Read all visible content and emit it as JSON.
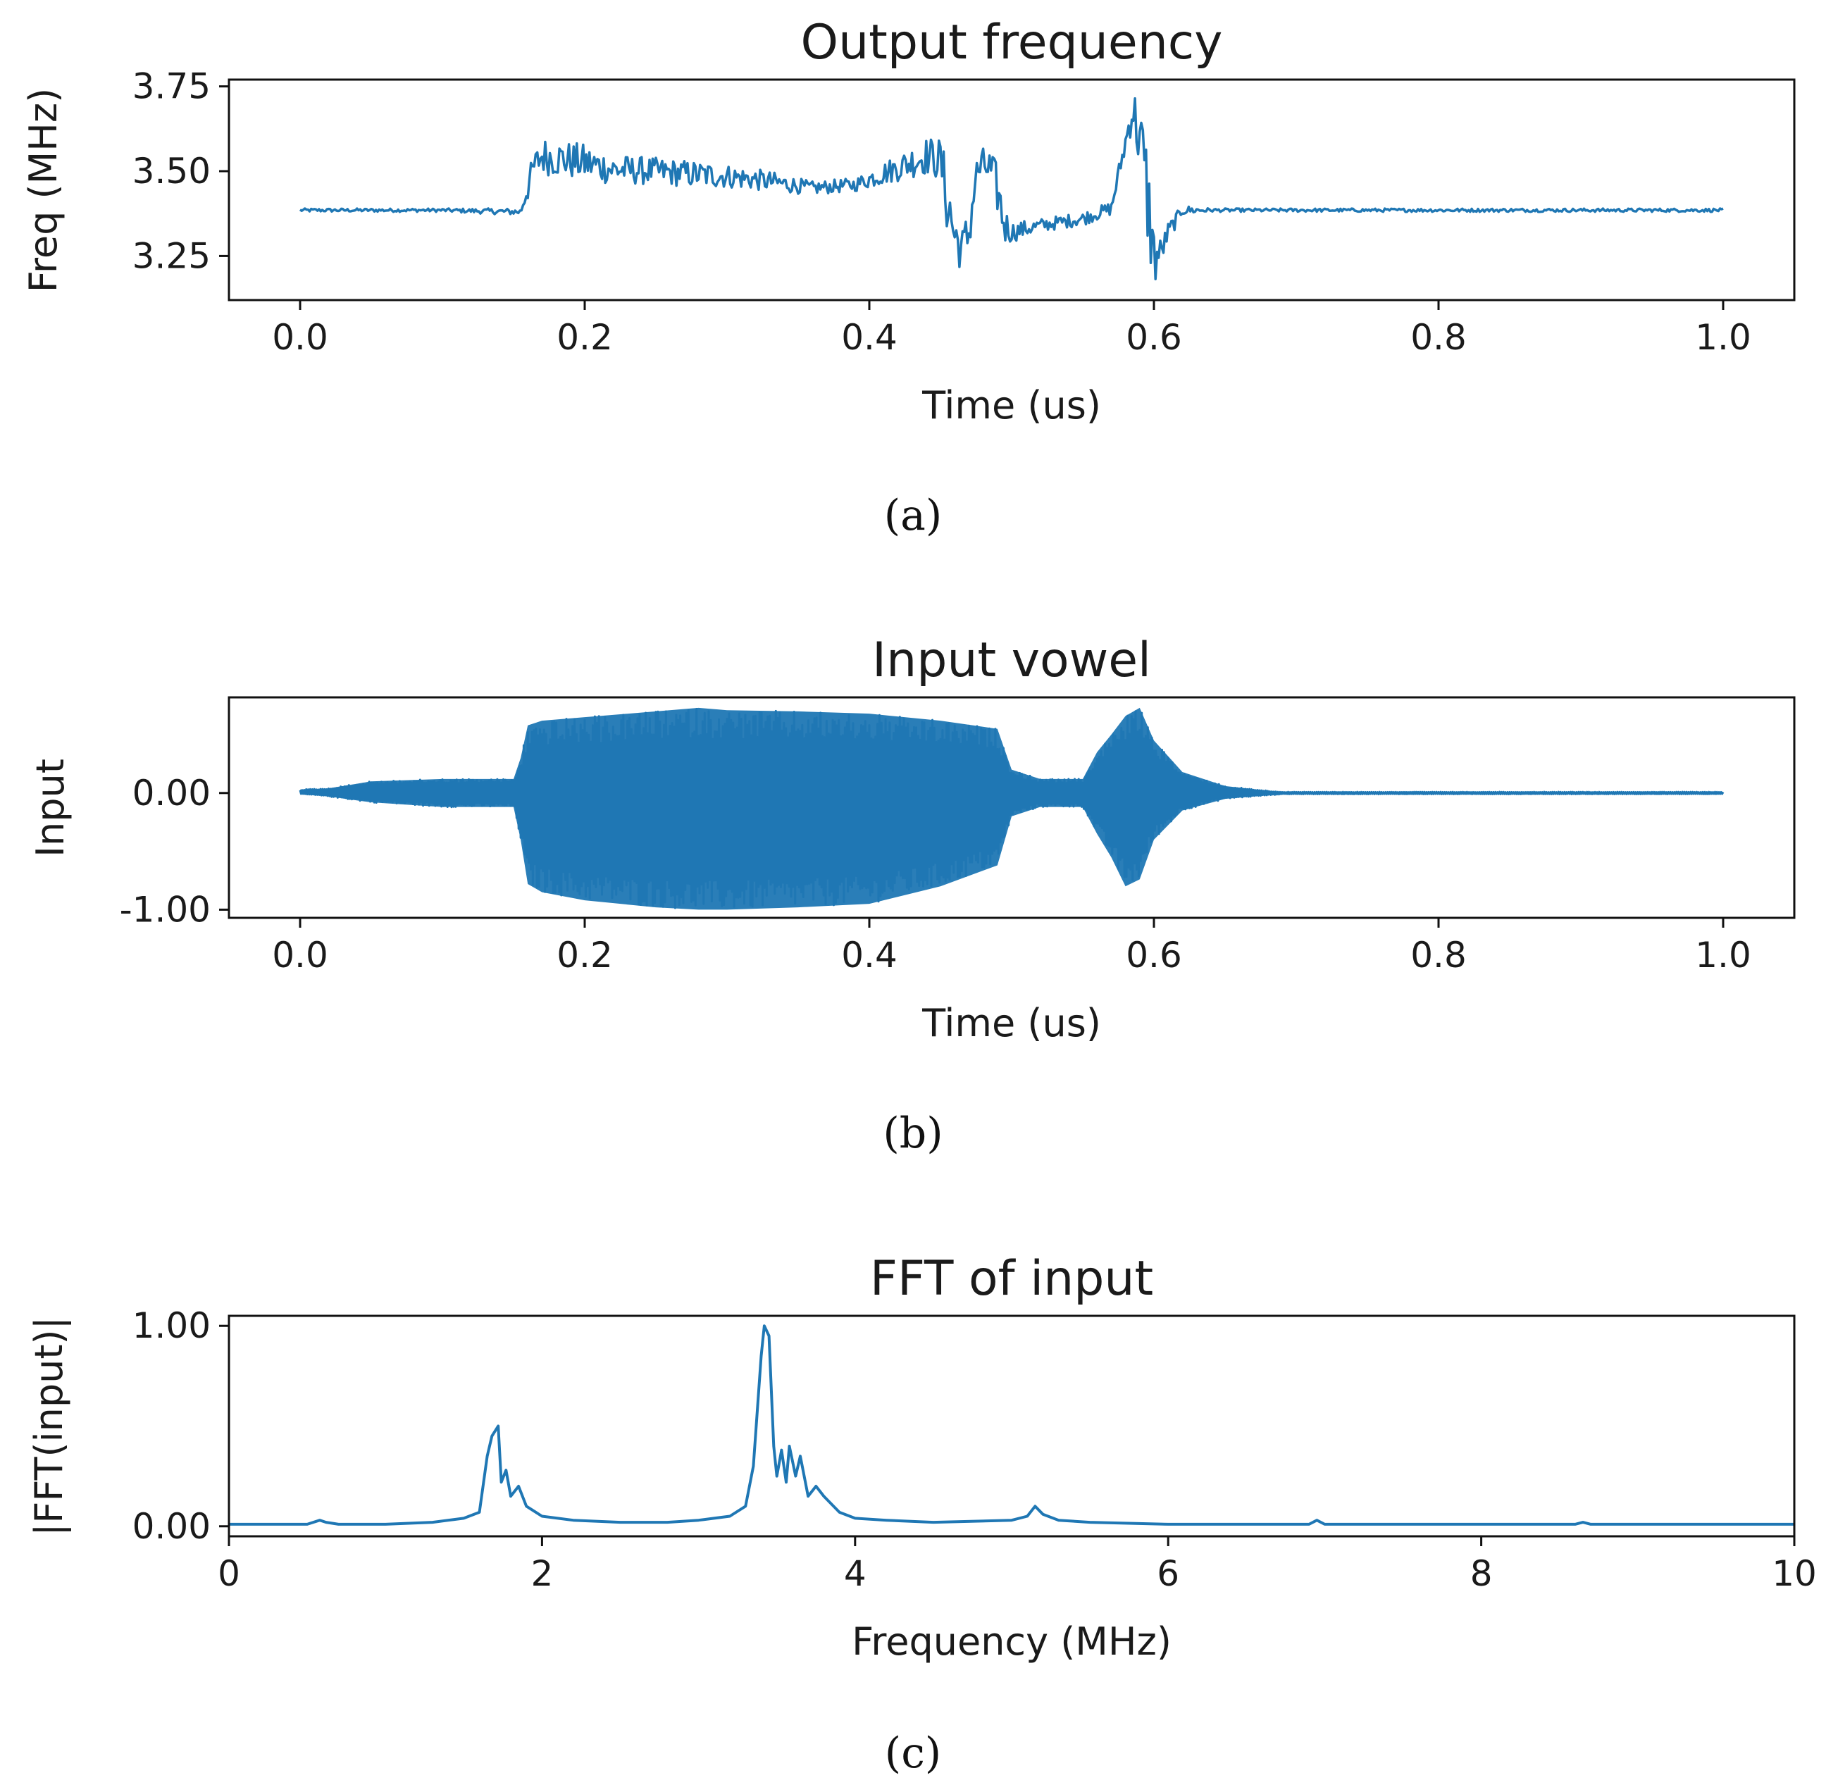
{
  "series_color": "#1f77b4",
  "chart_data": [
    {
      "type": "line",
      "panel": "a",
      "caption": "(a)",
      "title": "Output frequency",
      "xlabel": "Time (us)",
      "ylabel": "Freq (MHz)",
      "xlim": [
        -0.05,
        1.05
      ],
      "ylim": [
        3.12,
        3.77
      ],
      "xticks": [
        0.0,
        0.2,
        0.4,
        0.6,
        0.8,
        1.0
      ],
      "xtick_labels": [
        "0.0",
        "0.2",
        "0.4",
        "0.6",
        "0.8",
        "1.0"
      ],
      "yticks": [
        3.25,
        3.5,
        3.75
      ],
      "ytick_labels": [
        "3.25",
        "3.50",
        "3.75"
      ],
      "grid": false,
      "envelope": {
        "x": [
          0.0,
          0.05,
          0.1,
          0.155,
          0.16,
          0.165,
          0.17,
          0.2,
          0.22,
          0.25,
          0.28,
          0.3,
          0.33,
          0.36,
          0.39,
          0.42,
          0.44,
          0.45,
          0.455,
          0.46,
          0.465,
          0.47,
          0.475,
          0.48,
          0.485,
          0.49,
          0.495,
          0.5,
          0.52,
          0.55,
          0.57,
          0.58,
          0.585,
          0.59,
          0.595,
          0.6,
          0.605,
          0.61,
          0.62,
          0.64,
          0.7,
          0.8,
          0.9,
          1.0
        ],
        "upper": [
          3.39,
          3.39,
          3.39,
          3.39,
          3.5,
          3.56,
          3.6,
          3.58,
          3.55,
          3.54,
          3.53,
          3.52,
          3.5,
          3.47,
          3.48,
          3.55,
          3.6,
          3.6,
          3.52,
          3.4,
          3.33,
          3.4,
          3.54,
          3.57,
          3.57,
          3.52,
          3.4,
          3.35,
          3.36,
          3.38,
          3.41,
          3.62,
          3.75,
          3.72,
          3.6,
          3.35,
          3.3,
          3.35,
          3.4,
          3.39,
          3.39,
          3.39,
          3.39,
          3.39
        ],
        "lower": [
          3.38,
          3.38,
          3.38,
          3.37,
          3.41,
          3.48,
          3.49,
          3.47,
          3.46,
          3.46,
          3.45,
          3.45,
          3.44,
          3.43,
          3.44,
          3.47,
          3.49,
          3.47,
          3.3,
          3.22,
          3.21,
          3.24,
          3.44,
          3.47,
          3.43,
          3.37,
          3.28,
          3.29,
          3.32,
          3.34,
          3.37,
          3.55,
          3.62,
          3.48,
          3.28,
          3.14,
          3.22,
          3.29,
          3.37,
          3.38,
          3.38,
          3.38,
          3.38,
          3.38
        ]
      }
    },
    {
      "type": "line",
      "panel": "b",
      "caption": "(b)",
      "title": "Input vowel",
      "xlabel": "Time (us)",
      "ylabel": "Input",
      "xlim": [
        -0.05,
        1.05
      ],
      "ylim": [
        -1.07,
        0.82
      ],
      "xticks": [
        0.0,
        0.2,
        0.4,
        0.6,
        0.8,
        1.0
      ],
      "xtick_labels": [
        "0.0",
        "0.2",
        "0.4",
        "0.6",
        "0.8",
        "1.0"
      ],
      "yticks": [
        -1.0,
        0.0
      ],
      "ytick_labels": [
        "-1.00",
        "0.00"
      ],
      "grid": false,
      "envelope": {
        "x": [
          0.0,
          0.02,
          0.05,
          0.1,
          0.15,
          0.155,
          0.16,
          0.17,
          0.2,
          0.25,
          0.28,
          0.3,
          0.35,
          0.4,
          0.45,
          0.49,
          0.5,
          0.52,
          0.55,
          0.56,
          0.57,
          0.58,
          0.59,
          0.6,
          0.62,
          0.65,
          0.68,
          0.69,
          0.8,
          1.0
        ],
        "upper": [
          0.03,
          0.04,
          0.1,
          0.12,
          0.12,
          0.3,
          0.58,
          0.62,
          0.65,
          0.7,
          0.73,
          0.71,
          0.7,
          0.68,
          0.62,
          0.55,
          0.2,
          0.12,
          0.12,
          0.35,
          0.5,
          0.66,
          0.73,
          0.45,
          0.18,
          0.06,
          0.02,
          0.01,
          0.01,
          0.01
        ],
        "lower": [
          -0.01,
          -0.03,
          -0.08,
          -0.12,
          -0.12,
          -0.4,
          -0.78,
          -0.85,
          -0.92,
          -0.98,
          -1.0,
          -1.0,
          -0.98,
          -0.95,
          -0.8,
          -0.62,
          -0.2,
          -0.12,
          -0.12,
          -0.35,
          -0.55,
          -0.8,
          -0.74,
          -0.4,
          -0.15,
          -0.05,
          -0.02,
          -0.01,
          -0.01,
          -0.01
        ]
      }
    },
    {
      "type": "line",
      "panel": "c",
      "caption": "(c)",
      "title": "FFT of input",
      "xlabel": "Frequency (MHz)",
      "ylabel": "|FFT(input)|",
      "xlim": [
        0,
        10
      ],
      "ylim": [
        -0.05,
        1.05
      ],
      "xticks": [
        0,
        2,
        4,
        6,
        8,
        10
      ],
      "xtick_labels": [
        "0",
        "2",
        "4",
        "6",
        "8",
        "10"
      ],
      "yticks": [
        0.0,
        1.0
      ],
      "ytick_labels": [
        "0.00",
        "1.00"
      ],
      "grid": false,
      "x": [
        0.0,
        0.5,
        0.58,
        0.62,
        0.7,
        1.0,
        1.3,
        1.5,
        1.6,
        1.65,
        1.68,
        1.72,
        1.74,
        1.77,
        1.8,
        1.85,
        1.9,
        2.0,
        2.2,
        2.5,
        2.8,
        3.0,
        3.2,
        3.3,
        3.35,
        3.4,
        3.42,
        3.45,
        3.48,
        3.5,
        3.53,
        3.56,
        3.58,
        3.62,
        3.65,
        3.7,
        3.75,
        3.8,
        3.9,
        4.0,
        4.2,
        4.5,
        5.0,
        5.1,
        5.15,
        5.2,
        5.3,
        5.5,
        6.0,
        6.5,
        6.9,
        6.95,
        7.0,
        7.5,
        8.0,
        8.6,
        8.65,
        8.7,
        9.0,
        10.0
      ],
      "y": [
        0.01,
        0.01,
        0.03,
        0.02,
        0.01,
        0.01,
        0.02,
        0.04,
        0.07,
        0.35,
        0.45,
        0.5,
        0.22,
        0.28,
        0.15,
        0.2,
        0.1,
        0.05,
        0.03,
        0.02,
        0.02,
        0.03,
        0.05,
        0.1,
        0.3,
        0.85,
        1.0,
        0.95,
        0.4,
        0.25,
        0.38,
        0.22,
        0.4,
        0.25,
        0.35,
        0.15,
        0.2,
        0.15,
        0.07,
        0.04,
        0.03,
        0.02,
        0.03,
        0.05,
        0.1,
        0.06,
        0.03,
        0.02,
        0.01,
        0.01,
        0.01,
        0.03,
        0.01,
        0.01,
        0.01,
        0.01,
        0.02,
        0.01,
        0.01,
        0.01
      ]
    }
  ]
}
